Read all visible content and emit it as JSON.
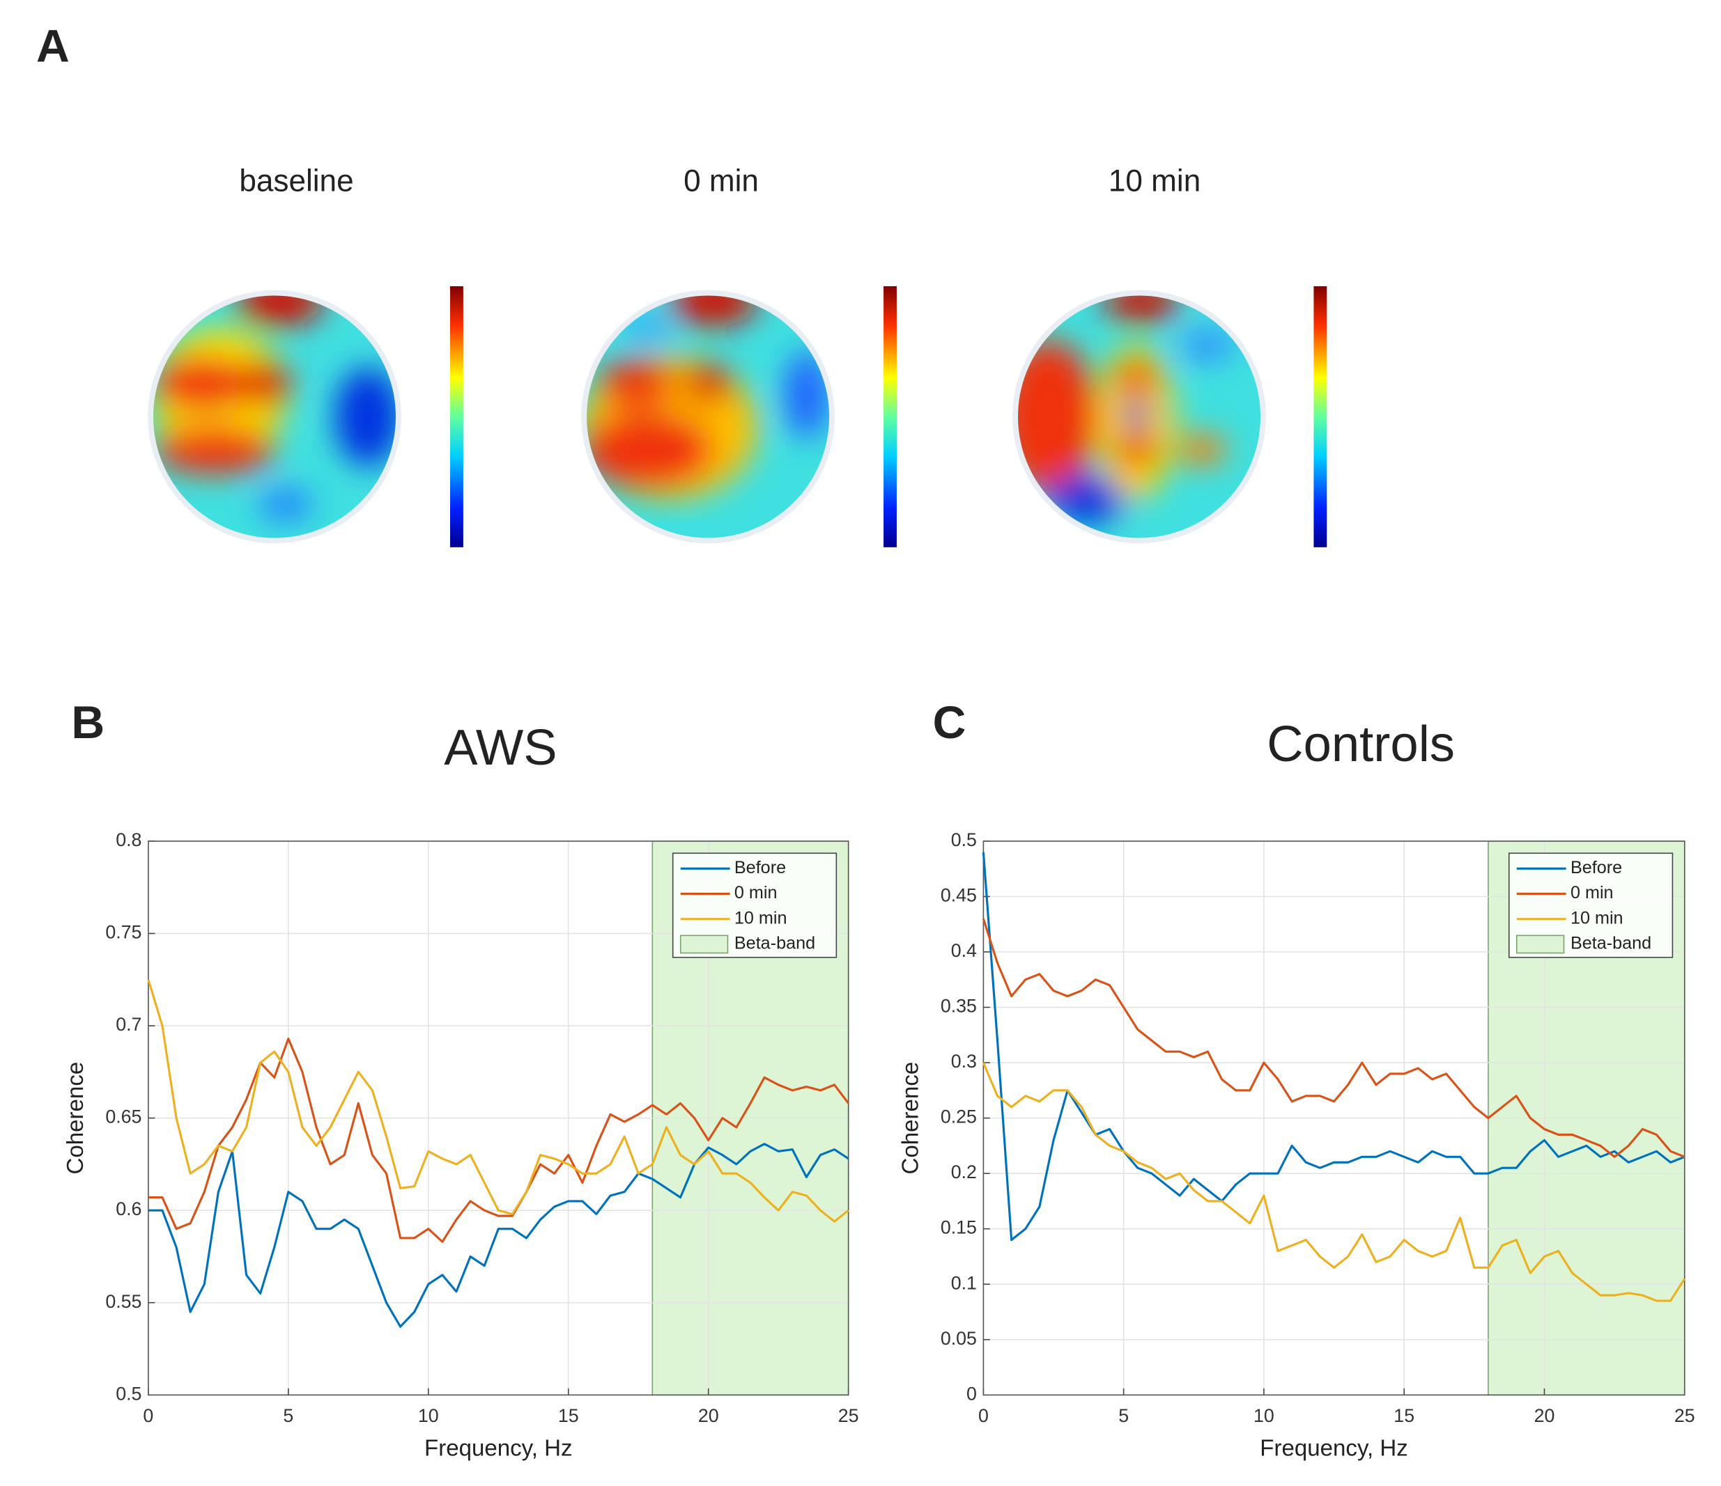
{
  "panel_a": {
    "label": "A",
    "maps": [
      {
        "title": "baseline"
      },
      {
        "title": "0 min"
      },
      {
        "title": "10 min"
      }
    ]
  },
  "chart_data": [
    {
      "type": "line",
      "panel_label": "B",
      "title": "AWS",
      "xlabel": "Frequency, Hz",
      "ylabel": "Coherence",
      "x": [
        0,
        0.5,
        1,
        1.5,
        2,
        2.5,
        3,
        3.5,
        4,
        4.5,
        5,
        5.5,
        6,
        6.5,
        7,
        7.5,
        8,
        8.5,
        9,
        9.5,
        10,
        10.5,
        11,
        11.5,
        12,
        12.5,
        13,
        13.5,
        14,
        14.5,
        15,
        15.5,
        16,
        16.5,
        17,
        17.5,
        18,
        18.5,
        19,
        19.5,
        20,
        20.5,
        21,
        21.5,
        22,
        22.5,
        23,
        23.5,
        24,
        24.5,
        25
      ],
      "series": [
        {
          "name": "Before",
          "color": "#0072bd",
          "values": [
            0.6,
            0.6,
            0.58,
            0.545,
            0.56,
            0.61,
            0.632,
            0.565,
            0.555,
            0.58,
            0.61,
            0.605,
            0.59,
            0.59,
            0.595,
            0.59,
            0.57,
            0.55,
            0.537,
            0.545,
            0.56,
            0.565,
            0.556,
            0.575,
            0.57,
            0.59,
            0.59,
            0.585,
            0.595,
            0.602,
            0.605,
            0.605,
            0.598,
            0.608,
            0.61,
            0.62,
            0.617,
            0.612,
            0.607,
            0.625,
            0.634,
            0.63,
            0.625,
            0.632,
            0.636,
            0.632,
            0.633,
            0.618,
            0.63,
            0.633,
            0.628
          ]
        },
        {
          "name": "0 min",
          "color": "#d95319",
          "values": [
            0.607,
            0.607,
            0.59,
            0.593,
            0.61,
            0.635,
            0.645,
            0.66,
            0.68,
            0.672,
            0.693,
            0.675,
            0.645,
            0.625,
            0.63,
            0.658,
            0.63,
            0.62,
            0.585,
            0.585,
            0.59,
            0.583,
            0.595,
            0.605,
            0.6,
            0.597,
            0.597,
            0.61,
            0.625,
            0.62,
            0.63,
            0.615,
            0.635,
            0.652,
            0.648,
            0.652,
            0.657,
            0.652,
            0.658,
            0.65,
            0.638,
            0.65,
            0.645,
            0.658,
            0.672,
            0.668,
            0.665,
            0.667,
            0.665,
            0.668,
            0.658
          ]
        },
        {
          "name": "10 min",
          "color": "#edb120",
          "values": [
            0.725,
            0.7,
            0.65,
            0.62,
            0.625,
            0.635,
            0.632,
            0.645,
            0.68,
            0.686,
            0.675,
            0.645,
            0.635,
            0.645,
            0.66,
            0.675,
            0.665,
            0.64,
            0.612,
            0.613,
            0.632,
            0.628,
            0.625,
            0.63,
            0.615,
            0.6,
            0.598,
            0.61,
            0.63,
            0.628,
            0.625,
            0.62,
            0.62,
            0.625,
            0.64,
            0.62,
            0.625,
            0.645,
            0.63,
            0.625,
            0.632,
            0.62,
            0.62,
            0.615,
            0.607,
            0.6,
            0.61,
            0.608,
            0.6,
            0.594,
            0.6
          ]
        }
      ],
      "bands": [
        {
          "name": "Beta-band",
          "color": "#ddf5d5",
          "x": [
            18,
            25
          ]
        }
      ],
      "xlim": [
        0,
        25
      ],
      "xticks": [
        0,
        5,
        10,
        15,
        20,
        25
      ],
      "ylim": [
        0.5,
        0.8
      ],
      "yticks": [
        0.5,
        0.55,
        0.6,
        0.65,
        0.7,
        0.75,
        0.8
      ],
      "grid": true,
      "legend": "upper right"
    },
    {
      "type": "line",
      "panel_label": "C",
      "title": "Controls",
      "xlabel": "Frequency, Hz",
      "ylabel": "Coherence",
      "x": [
        0,
        0.5,
        1,
        1.5,
        2,
        2.5,
        3,
        3.5,
        4,
        4.5,
        5,
        5.5,
        6,
        6.5,
        7,
        7.5,
        8,
        8.5,
        9,
        9.5,
        10,
        10.5,
        11,
        11.5,
        12,
        12.5,
        13,
        13.5,
        14,
        14.5,
        15,
        15.5,
        16,
        16.5,
        17,
        17.5,
        18,
        18.5,
        19,
        19.5,
        20,
        20.5,
        21,
        21.5,
        22,
        22.5,
        23,
        23.5,
        24,
        24.5,
        25
      ],
      "series": [
        {
          "name": "Before",
          "color": "#0072bd",
          "values": [
            0.49,
            0.32,
            0.14,
            0.15,
            0.17,
            0.23,
            0.275,
            0.255,
            0.235,
            0.24,
            0.22,
            0.205,
            0.2,
            0.19,
            0.18,
            0.195,
            0.185,
            0.175,
            0.19,
            0.2,
            0.2,
            0.2,
            0.225,
            0.21,
            0.205,
            0.21,
            0.21,
            0.215,
            0.215,
            0.22,
            0.215,
            0.21,
            0.22,
            0.215,
            0.215,
            0.2,
            0.2,
            0.205,
            0.205,
            0.22,
            0.23,
            0.215,
            0.22,
            0.225,
            0.215,
            0.22,
            0.21,
            0.215,
            0.22,
            0.21,
            0.215
          ]
        },
        {
          "name": "0 min",
          "color": "#d95319",
          "values": [
            0.43,
            0.39,
            0.36,
            0.375,
            0.38,
            0.365,
            0.36,
            0.365,
            0.375,
            0.37,
            0.35,
            0.33,
            0.32,
            0.31,
            0.31,
            0.305,
            0.31,
            0.285,
            0.275,
            0.275,
            0.3,
            0.285,
            0.265,
            0.27,
            0.27,
            0.265,
            0.28,
            0.3,
            0.28,
            0.29,
            0.29,
            0.295,
            0.285,
            0.29,
            0.275,
            0.26,
            0.25,
            0.26,
            0.27,
            0.25,
            0.24,
            0.235,
            0.235,
            0.23,
            0.225,
            0.215,
            0.225,
            0.24,
            0.235,
            0.22,
            0.215
          ]
        },
        {
          "name": "10 min",
          "color": "#edb120",
          "values": [
            0.3,
            0.27,
            0.26,
            0.27,
            0.265,
            0.275,
            0.275,
            0.26,
            0.235,
            0.225,
            0.22,
            0.21,
            0.205,
            0.195,
            0.2,
            0.185,
            0.175,
            0.175,
            0.165,
            0.155,
            0.18,
            0.13,
            0.135,
            0.14,
            0.125,
            0.115,
            0.125,
            0.145,
            0.12,
            0.125,
            0.14,
            0.13,
            0.125,
            0.13,
            0.16,
            0.115,
            0.115,
            0.135,
            0.14,
            0.11,
            0.125,
            0.13,
            0.11,
            0.1,
            0.09,
            0.09,
            0.092,
            0.09,
            0.085,
            0.085,
            0.105
          ]
        }
      ],
      "bands": [
        {
          "name": "Beta-band",
          "color": "#ddf5d5",
          "x": [
            18,
            25
          ]
        }
      ],
      "xlim": [
        0,
        25
      ],
      "xticks": [
        0,
        5,
        10,
        15,
        20,
        25
      ],
      "ylim": [
        0,
        0.5
      ],
      "yticks": [
        0,
        0.05,
        0.1,
        0.15,
        0.2,
        0.25,
        0.3,
        0.35,
        0.4,
        0.45,
        0.5
      ],
      "grid": true,
      "legend": "upper right"
    }
  ]
}
